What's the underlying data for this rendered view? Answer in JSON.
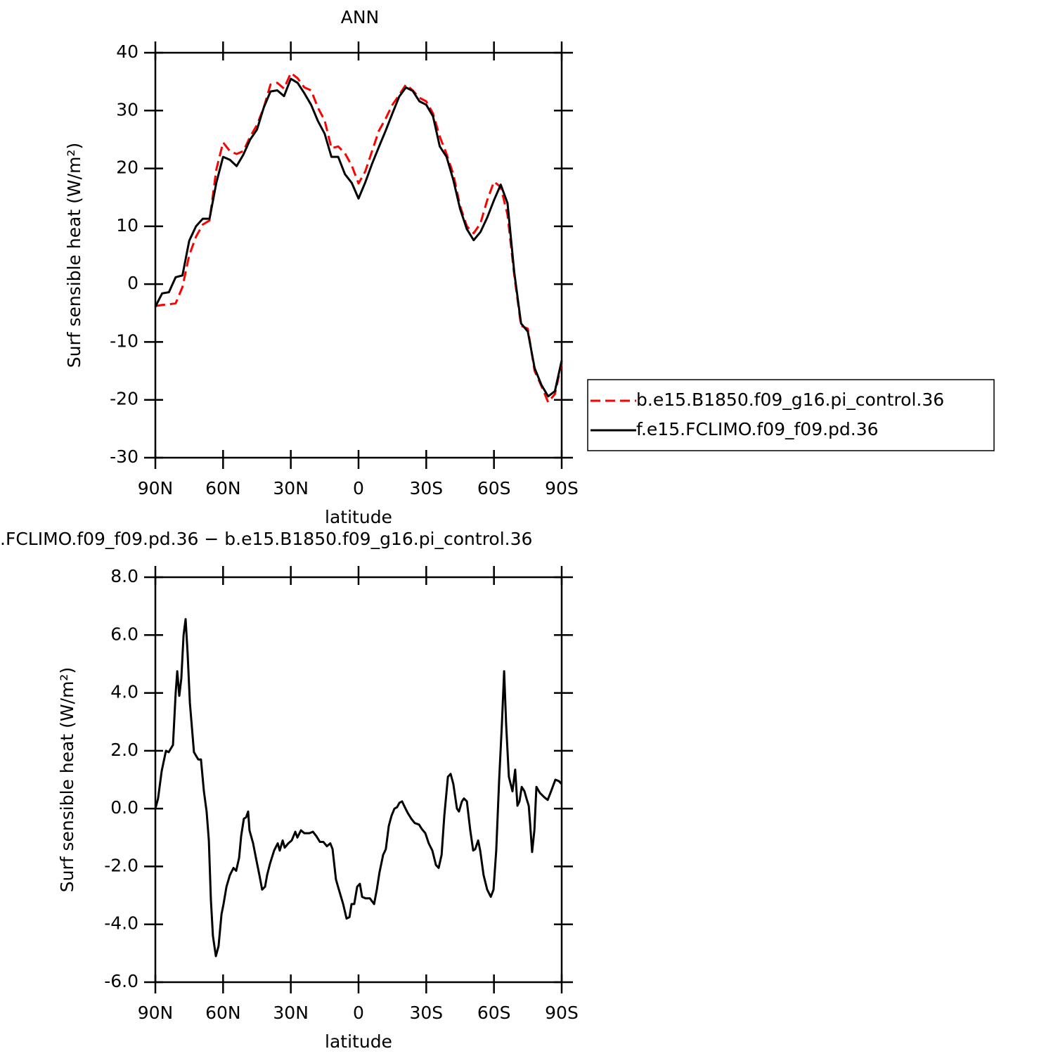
{
  "chart_data": [
    {
      "type": "line",
      "title": "ANN",
      "xlabel": "latitude",
      "ylabel": "Surf sensible heat (W/m²)",
      "x": [
        90,
        87,
        84,
        81,
        78,
        75,
        72,
        69,
        66,
        63,
        60,
        57,
        54,
        51,
        48,
        45,
        42,
        39,
        36,
        33,
        30,
        27,
        24,
        21,
        18,
        15,
        12,
        9,
        6,
        3,
        0,
        -3,
        -6,
        -9,
        -12,
        -15,
        -18,
        -21,
        -24,
        -27,
        -30,
        -33,
        -36,
        -39,
        -42,
        -45,
        -48,
        -51,
        -54,
        -57,
        -60,
        -63,
        -66,
        -69,
        -72,
        -75,
        -78,
        -81,
        -84,
        -87,
        -90
      ],
      "series": [
        {
          "name": "b.e15.B1850.f09_g16.pi_control.36",
          "color": "#ff0000",
          "dash": true,
          "values": [
            -3.8,
            -3.6,
            -3.5,
            -3.3,
            -0.5,
            5.0,
            8.2,
            10.3,
            11.0,
            19.8,
            24.5,
            23.0,
            22.5,
            23.0,
            25.5,
            27.5,
            30.5,
            34.5,
            34.8,
            33.8,
            36.5,
            35.6,
            34.0,
            33.5,
            30.5,
            28.3,
            23.5,
            23.8,
            22.6,
            20.5,
            17.4,
            19.5,
            23.0,
            26.5,
            28.6,
            31.0,
            32.7,
            34.5,
            33.5,
            32.2,
            31.6,
            29.5,
            25.5,
            22.5,
            19.0,
            13.5,
            10.0,
            8.8,
            10.5,
            14.5,
            17.7,
            16.8,
            12.0,
            1.5,
            -7.2,
            -7.7,
            -15.0,
            -17.6,
            -20.4,
            -19.0,
            -13.6
          ]
        },
        {
          "name": "f.e15.FCLIMO.f09_f09.pd.36",
          "color": "#000000",
          "dash": false,
          "values": [
            -3.9,
            -1.6,
            -1.4,
            1.2,
            1.5,
            7.5,
            10.0,
            11.3,
            11.3,
            17.5,
            22.0,
            21.5,
            20.4,
            22.4,
            25.0,
            26.7,
            30.5,
            33.3,
            33.5,
            32.5,
            35.5,
            34.8,
            33.0,
            31.0,
            28.2,
            26.0,
            22.0,
            22.0,
            19.0,
            17.5,
            14.8,
            17.6,
            20.8,
            23.7,
            26.5,
            29.5,
            32.4,
            34.0,
            33.4,
            31.6,
            31.0,
            29.0,
            23.8,
            22.0,
            18.0,
            13.0,
            9.5,
            7.6,
            9.0,
            11.5,
            14.5,
            17.2,
            14.0,
            2.0,
            -6.8,
            -8.2,
            -14.5,
            -17.4,
            -19.4,
            -18.5,
            -13.2
          ]
        }
      ],
      "xlim": [
        90,
        -90
      ],
      "xticks": [
        {
          "value": 90,
          "label": "90N"
        },
        {
          "value": 60,
          "label": "60N"
        },
        {
          "value": 30,
          "label": "30N"
        },
        0,
        {
          "value": -30,
          "label": "30S"
        },
        {
          "value": -60,
          "label": "60S"
        },
        {
          "value": -90,
          "label": "90S"
        }
      ],
      "ylim": [
        -30,
        40
      ],
      "yticks": [
        -30,
        -20,
        -10,
        0,
        10,
        20,
        30,
        40
      ],
      "legend": "right"
    },
    {
      "type": "line",
      "title": ".FCLIMO.f09_f09.pd.36 − b.e15.B1850.f09_g16.pi_control.36",
      "xlabel": "latitude",
      "ylabel": "Surf sensible heat (W/m²)",
      "x": [
        90,
        88.8,
        87.2,
        85.3,
        84.1,
        82.2,
        81.0,
        80.3,
        79.4,
        78.5,
        77.5,
        76.6,
        75.7,
        74.7,
        72.9,
        71.0,
        69.8,
        68.5,
        67.3,
        66.3,
        65.4,
        64.5,
        63.2,
        62.0,
        60.7,
        59.8,
        58.5,
        57.0,
        55.4,
        54.2,
        52.9,
        52.0,
        50.8,
        49.8,
        48.9,
        48.3,
        46.7,
        45.2,
        43.9,
        42.7,
        41.4,
        40.5,
        39.2,
        37.4,
        35.8,
        34.9,
        33.6,
        32.7,
        31.1,
        29.6,
        28.0,
        27.1,
        25.5,
        24.0,
        21.8,
        20.2,
        18.7,
        17.1,
        15.6,
        14.0,
        12.5,
        11.5,
        10.0,
        8.7,
        6.8,
        5.3,
        4.0,
        3.1,
        1.9,
        0.6,
        -0.6,
        -1.6,
        -3.1,
        -5.0,
        -6.9,
        -8.1,
        -9.3,
        -10.9,
        -12.1,
        -13.4,
        -14.6,
        -15.9,
        -17.1,
        -18.1,
        -19.3,
        -20.2,
        -21.8,
        -23.4,
        -24.9,
        -26.8,
        -28.0,
        -29.6,
        -31.1,
        -32.7,
        -34.3,
        -35.5,
        -36.8,
        -38.0,
        -39.6,
        -40.8,
        -42.0,
        -43.6,
        -44.5,
        -45.8,
        -46.7,
        -48.0,
        -49.5,
        -50.8,
        -51.7,
        -53.0,
        -53.9,
        -55.4,
        -57.0,
        -58.6,
        -59.8,
        -61.0,
        -62.3,
        -63.5,
        -64.5,
        -65.4,
        -66.6,
        -68.2,
        -69.4,
        -70.4,
        -71.3,
        -72.3,
        -73.5,
        -74.4,
        -75.4,
        -76.0,
        -76.9,
        -77.9,
        -78.8,
        -80.3,
        -82.2,
        -83.8,
        -85.3,
        -87.2,
        -88.8,
        -90
      ],
      "series": [
        {
          "color": "#000000",
          "dash": false,
          "values": [
            0.0,
            0.35,
            1.3,
            2.0,
            1.95,
            2.2,
            4.0,
            4.75,
            3.9,
            4.5,
            6.0,
            6.55,
            5.35,
            3.65,
            1.95,
            1.7,
            1.7,
            0.6,
            -0.1,
            -1.1,
            -3.15,
            -4.4,
            -5.1,
            -4.75,
            -3.65,
            -3.3,
            -2.7,
            -2.3,
            -2.05,
            -2.15,
            -1.7,
            -0.95,
            -0.35,
            -0.3,
            -0.1,
            -0.75,
            -1.2,
            -1.8,
            -2.3,
            -2.8,
            -2.7,
            -2.3,
            -1.9,
            -1.45,
            -1.2,
            -1.45,
            -1.1,
            -1.35,
            -1.2,
            -1.1,
            -0.8,
            -1.0,
            -0.75,
            -0.85,
            -0.85,
            -0.8,
            -0.95,
            -1.15,
            -1.15,
            -1.3,
            -1.2,
            -1.4,
            -2.45,
            -2.8,
            -3.3,
            -3.8,
            -3.75,
            -3.3,
            -3.3,
            -2.7,
            -2.6,
            -3.05,
            -3.1,
            -3.1,
            -3.3,
            -2.8,
            -2.2,
            -1.6,
            -1.4,
            -0.6,
            -0.25,
            0.0,
            0.05,
            0.2,
            0.25,
            0.1,
            -0.15,
            -0.35,
            -0.5,
            -0.55,
            -0.7,
            -0.85,
            -1.2,
            -1.45,
            -1.95,
            -2.05,
            -1.6,
            -0.25,
            1.1,
            1.2,
            0.85,
            0.0,
            -0.1,
            0.25,
            0.35,
            0.25,
            -0.75,
            -1.45,
            -1.4,
            -1.1,
            -1.45,
            -2.3,
            -2.8,
            -3.05,
            -2.8,
            -1.45,
            1.0,
            2.9,
            4.75,
            2.9,
            1.1,
            0.6,
            1.35,
            0.1,
            0.25,
            0.75,
            0.6,
            0.35,
            0.1,
            -0.5,
            -1.5,
            -0.75,
            0.75,
            0.55,
            0.4,
            0.3,
            0.6,
            1.0,
            0.95,
            0.85
          ]
        }
      ],
      "xlim": [
        90,
        -90
      ],
      "xticks": [
        {
          "value": 90,
          "label": "90N"
        },
        {
          "value": 60,
          "label": "60N"
        },
        {
          "value": 30,
          "label": "30N"
        },
        0,
        {
          "value": -30,
          "label": "30S"
        },
        {
          "value": -60,
          "label": "60S"
        },
        {
          "value": -90,
          "label": "90S"
        }
      ],
      "ylim": [
        -6,
        8
      ],
      "yticks": [
        {
          "value": -6,
          "label": "-6.0"
        },
        {
          "value": -4,
          "label": "-4.0"
        },
        {
          "value": -2,
          "label": "-2.0"
        },
        {
          "value": 0,
          "label": "0.0"
        },
        {
          "value": 2,
          "label": "2.0"
        },
        {
          "value": 4,
          "label": "4.0"
        },
        {
          "value": 6,
          "label": "6.0"
        },
        {
          "value": 8,
          "label": "8.0"
        }
      ]
    }
  ]
}
